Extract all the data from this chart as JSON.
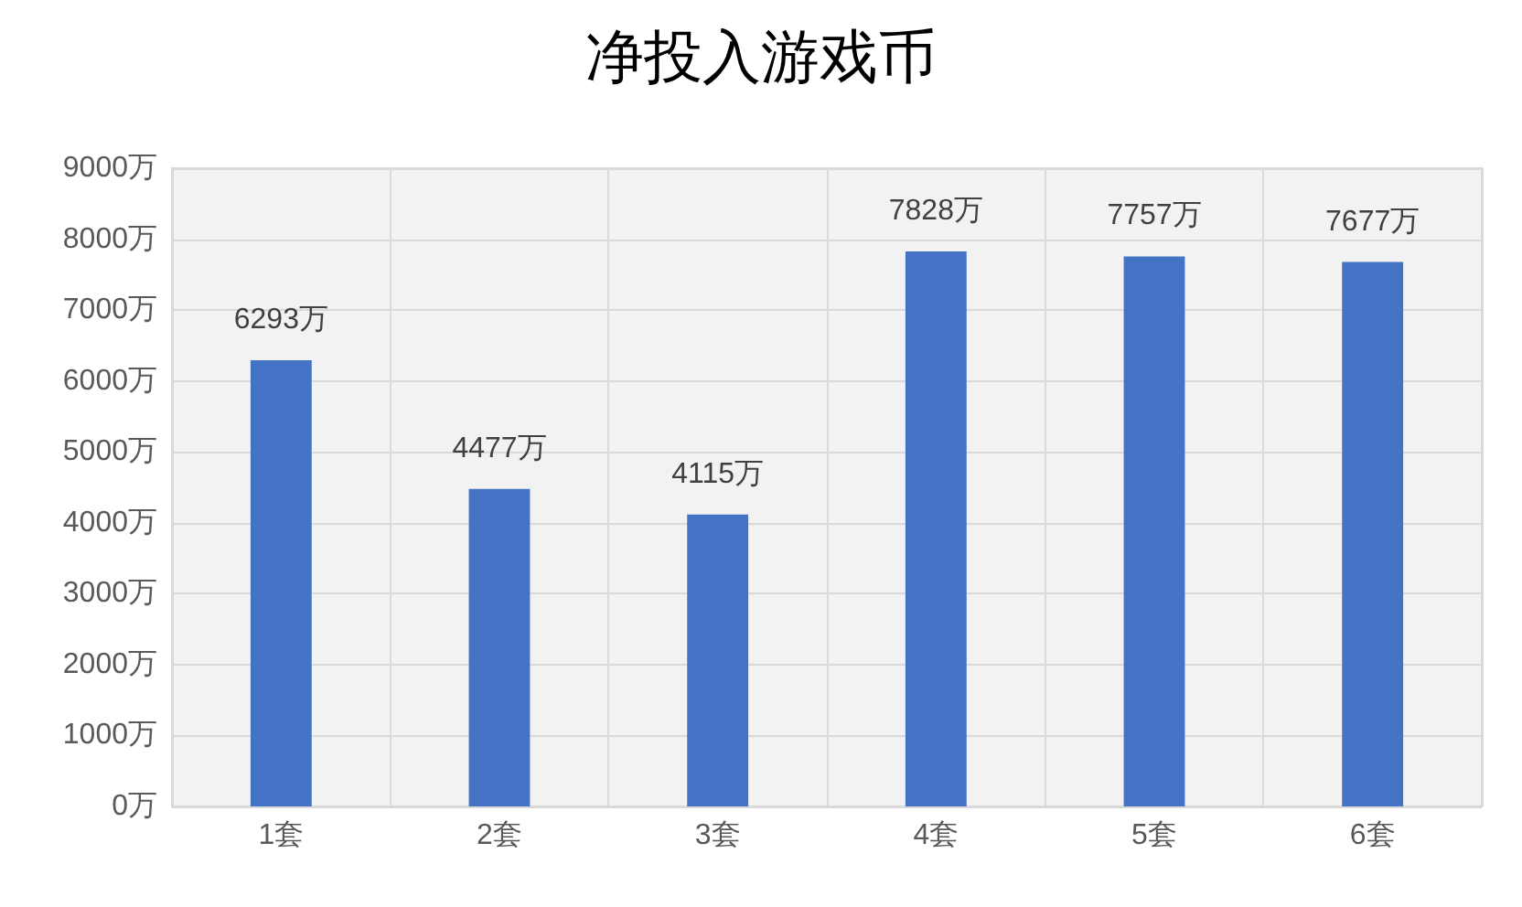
{
  "chart_data": {
    "type": "bar",
    "title": "净投入游戏币",
    "categories": [
      "1套",
      "2套",
      "3套",
      "4套",
      "5套",
      "6套"
    ],
    "values": [
      6293,
      4477,
      4115,
      7828,
      7757,
      7677
    ],
    "value_labels": [
      "6293万",
      "4477万",
      "4115万",
      "7828万",
      "7757万",
      "7677万"
    ],
    "color": "#4472c4",
    "ylim": [
      0,
      9000
    ],
    "yticks": [
      {
        "value": 0,
        "label": "0万"
      },
      {
        "value": 1000,
        "label": "1000万"
      },
      {
        "value": 2000,
        "label": "2000万"
      },
      {
        "value": 3000,
        "label": "3000万"
      },
      {
        "value": 4000,
        "label": "4000万"
      },
      {
        "value": 5000,
        "label": "5000万"
      },
      {
        "value": 6000,
        "label": "6000万"
      },
      {
        "value": 7000,
        "label": "7000万"
      },
      {
        "value": 8000,
        "label": "8000万"
      },
      {
        "value": 9000,
        "label": "9000万"
      }
    ],
    "grid": true
  }
}
